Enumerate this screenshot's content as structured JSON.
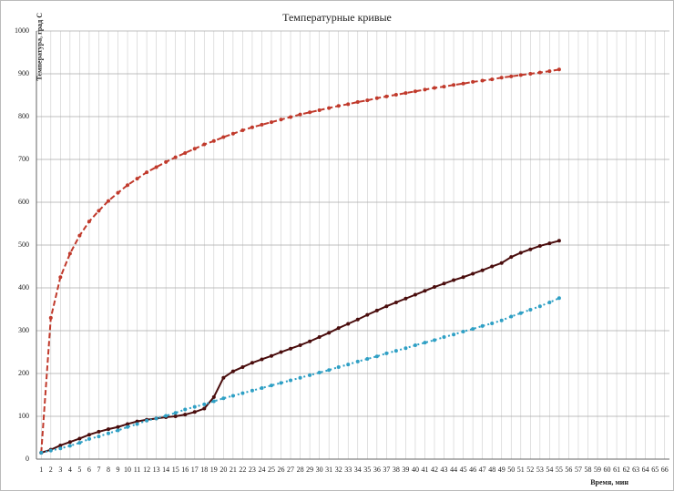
{
  "chart_data": {
    "type": "line",
    "title": "Температурные кривые",
    "y_label": "Температура, град С",
    "x_label": "Время, мин",
    "categories": [
      1,
      2,
      3,
      4,
      5,
      6,
      7,
      8,
      9,
      10,
      11,
      12,
      13,
      14,
      15,
      16,
      17,
      18,
      19,
      20,
      21,
      22,
      23,
      24,
      25,
      26,
      27,
      28,
      29,
      30,
      31,
      32,
      33,
      34,
      35,
      36,
      37,
      38,
      39,
      40,
      41,
      42,
      43,
      44,
      45,
      46,
      47,
      48,
      49,
      50,
      51,
      52,
      53,
      54,
      55,
      56,
      57,
      58,
      59,
      60,
      61,
      62,
      63,
      64,
      65,
      66
    ],
    "ylim": [
      0,
      1000
    ],
    "yticks": [
      0,
      100,
      200,
      300,
      400,
      500,
      600,
      700,
      800,
      900,
      1000
    ],
    "grid": true,
    "series": [
      {
        "color": "#c0392b",
        "style": "dashed",
        "values": [
          15,
          330,
          425,
          480,
          522,
          555,
          580,
          603,
          622,
          640,
          655,
          670,
          682,
          694,
          705,
          715,
          725,
          735,
          743,
          752,
          760,
          768,
          775,
          781,
          787,
          793,
          799,
          805,
          810,
          815,
          820,
          825,
          829,
          834,
          838,
          843,
          847,
          851,
          855,
          859,
          863,
          867,
          870,
          874,
          877,
          881,
          884,
          887,
          891,
          894,
          897,
          900,
          903,
          906,
          910,
          null,
          null,
          null,
          null,
          null,
          null,
          null,
          null,
          null,
          null,
          null
        ]
      },
      {
        "color": "#4a0d0d",
        "style": "solid",
        "values": [
          15,
          22,
          32,
          40,
          48,
          57,
          64,
          70,
          75,
          82,
          88,
          92,
          95,
          98,
          100,
          104,
          110,
          118,
          145,
          190,
          205,
          215,
          225,
          233,
          241,
          250,
          258,
          266,
          275,
          285,
          295,
          306,
          316,
          326,
          337,
          347,
          357,
          366,
          375,
          384,
          393,
          402,
          410,
          418,
          425,
          433,
          441,
          450,
          458,
          472,
          482,
          490,
          498,
          504,
          510,
          null,
          null,
          null,
          null,
          null,
          null,
          null,
          null,
          null,
          null,
          null
        ]
      },
      {
        "color": "#2e9fc4",
        "style": "dotted",
        "values": [
          15,
          20,
          25,
          31,
          38,
          47,
          53,
          60,
          67,
          75,
          82,
          90,
          95,
          101,
          108,
          116,
          122,
          128,
          135,
          142,
          148,
          154,
          160,
          166,
          172,
          178,
          184,
          190,
          196,
          202,
          208,
          215,
          221,
          228,
          234,
          240,
          247,
          253,
          259,
          266,
          272,
          278,
          285,
          291,
          298,
          304,
          311,
          317,
          324,
          333,
          341,
          349,
          357,
          366,
          376,
          null,
          null,
          null,
          null,
          null,
          null,
          null,
          null,
          null,
          null,
          null
        ]
      }
    ]
  }
}
